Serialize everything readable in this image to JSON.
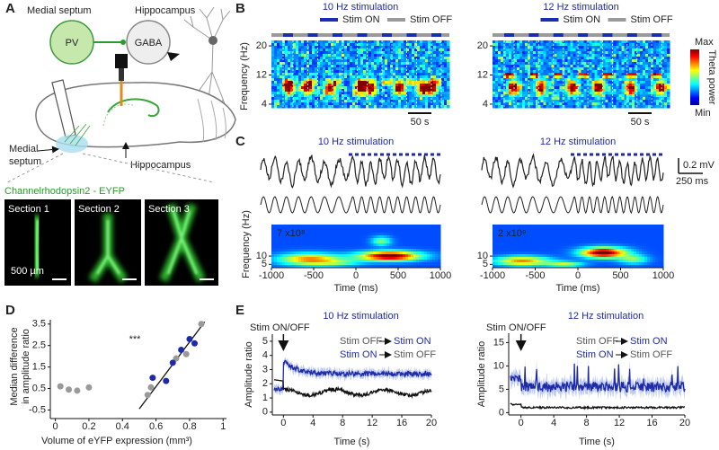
{
  "panels": {
    "A": {
      "letter": "A",
      "labels": {
        "medial_septum": "Medial septum",
        "hippocampus": "Hippocampus"
      },
      "cells": {
        "pv": "PV",
        "gaba": "GABA"
      },
      "brain_labels": {
        "hippocampus": "Hippocampus",
        "medial_septum": [
          "Medial",
          "septum"
        ]
      },
      "expression_title": "Channelrhodopsin2 - EYFP",
      "sections": [
        "Section 1",
        "Section 2",
        "Section 3"
      ],
      "scale_bar": "500 µm"
    },
    "B": {
      "letter": "B",
      "titles": [
        "10 Hz stimulation",
        "12 Hz stimulation"
      ],
      "legend": {
        "on": "Stim ON",
        "off": "Stim OFF",
        "on_color": "#1a2db0",
        "off_color": "#9a9a9a"
      },
      "y_label": "Frequency (Hz)",
      "ylim": [
        3,
        21.5
      ],
      "yticks": [
        20,
        12,
        4
      ],
      "scale_bar": "50 s",
      "colorbar": {
        "max": "Max",
        "label": "Theta power",
        "min": "Min"
      }
    },
    "C": {
      "letter": "C",
      "titles": [
        "10 Hz stimulation",
        "12 Hz stimulation"
      ],
      "scale_bars": {
        "voltage": "0.2 mV",
        "time": "250 ms"
      },
      "y_label": "Frequency (Hz)",
      "ylim": [
        3,
        29
      ],
      "yticks": [
        10,
        5
      ],
      "xlim": [
        -1000,
        1000
      ],
      "xticks": [
        -1000,
        -500,
        0,
        500,
        1000
      ],
      "x_label": "Time (ms)",
      "power_labels": [
        "7 x10⁸",
        "2 x10⁹"
      ]
    },
    "D": {
      "letter": "D",
      "y_label": [
        "Median difference",
        "in amplitude ratio"
      ],
      "x_label": "Volume of eYFP expression (mm³)",
      "significance": "***",
      "xlim": [
        -0.03,
        1.02
      ],
      "xticks": [
        0,
        0.2,
        0.4,
        0.6,
        0.8,
        1
      ],
      "ylim": [
        -0.9,
        3.7
      ],
      "yticks": [
        3.5,
        2.5,
        1.5,
        0.5,
        -0.5
      ],
      "points": [
        {
          "color": "#999999",
          "x": [
            0.03,
            0.08,
            0.13,
            0.2,
            0.55,
            0.57,
            0.72,
            0.78,
            0.87
          ],
          "y": [
            0.6,
            0.45,
            0.4,
            0.55,
            0.2,
            0.55,
            1.9,
            2.1,
            3.5
          ]
        },
        {
          "color": "#1f2aa8",
          "x": [
            0.58,
            0.66,
            0.7,
            0.75,
            0.8,
            0.83
          ],
          "y": [
            1.0,
            0.85,
            1.7,
            2.3,
            2.8,
            2.6
          ]
        }
      ],
      "fit": {
        "x": [
          0.5,
          0.89
        ],
        "y": [
          -0.45,
          3.6
        ]
      }
    },
    "E": {
      "letter": "E",
      "titles": [
        "10 Hz stimulation",
        "12 Hz stimulation"
      ],
      "stim_label": "Stim ON/OFF",
      "legend": {
        "off": "Stim OFF",
        "on": "Stim ON"
      },
      "y_label": "Amplitude ratio",
      "x_label": "Time (s)",
      "xticks": [
        0,
        4,
        8,
        12,
        16,
        20
      ],
      "plots": [
        {
          "xlim": [
            -1.5,
            20
          ],
          "ylim": [
            -0.2,
            5.5
          ],
          "yticks": [
            0,
            1,
            2,
            3,
            4,
            5
          ]
        },
        {
          "xlim": [
            -1.5,
            20
          ],
          "ylim": [
            -0.5,
            17
          ],
          "yticks": [
            0,
            5,
            10,
            15
          ]
        }
      ]
    }
  }
}
